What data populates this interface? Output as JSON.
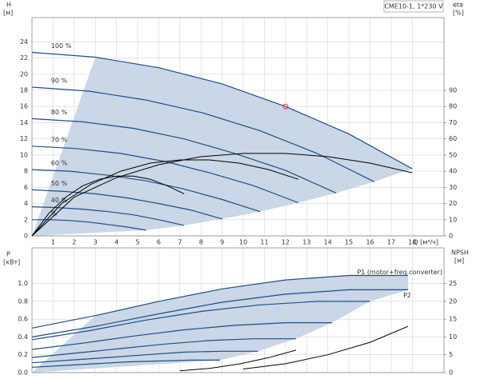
{
  "chart_data": [
    {
      "type": "line",
      "title": "CME10-1, 1*230 V",
      "y_label": "H",
      "y_unit": "[м]",
      "y2_label": "eta",
      "y2_unit": "[%]",
      "x_label": "Q [м³/ч]",
      "xlim": [
        0,
        19.5
      ],
      "xticks": [
        1,
        2,
        3,
        4,
        5,
        6,
        7,
        8,
        9,
        10,
        11,
        12,
        13,
        14,
        15,
        16,
        17,
        18
      ],
      "ylim": [
        0,
        27
      ],
      "yticks": [
        0,
        2,
        4,
        6,
        8,
        10,
        12,
        14,
        16,
        18,
        20,
        22,
        24
      ],
      "y2lim": [
        0,
        135
      ],
      "y2ticks": [
        0,
        10,
        20,
        30,
        40,
        50,
        60,
        70,
        80,
        90
      ],
      "grid": true,
      "area_color": "#c9d7e8",
      "series": [
        {
          "name": "100 %",
          "color": "#1f4e86",
          "x": [
            0,
            3,
            6,
            9,
            12,
            15,
            18
          ],
          "values": [
            22.7,
            22.1,
            20.8,
            18.8,
            16.0,
            12.6,
            8.3
          ]
        },
        {
          "name": "90 %",
          "color": "#1f4e86",
          "x": [
            0,
            2.7,
            5.4,
            8.1,
            10.8,
            13.5,
            16.2
          ],
          "values": [
            18.4,
            17.9,
            16.8,
            15.2,
            13.0,
            10.2,
            6.7
          ]
        },
        {
          "name": "80 %",
          "color": "#1f4e86",
          "x": [
            0,
            2.4,
            4.8,
            7.2,
            9.6,
            12,
            14.4
          ],
          "values": [
            14.5,
            14.1,
            13.3,
            12.0,
            10.2,
            8.1,
            5.3
          ]
        },
        {
          "name": "70 %",
          "color": "#1f4e86",
          "x": [
            0,
            2.1,
            4.2,
            6.3,
            8.4,
            10.5,
            12.6
          ],
          "values": [
            11.1,
            10.8,
            10.2,
            9.2,
            7.8,
            6.2,
            4.1
          ]
        },
        {
          "name": "60 %",
          "color": "#1f4e86",
          "x": [
            0,
            1.8,
            3.6,
            5.4,
            7.2,
            9,
            10.8
          ],
          "values": [
            8.2,
            8.0,
            7.5,
            6.8,
            5.8,
            4.5,
            3.0
          ]
        },
        {
          "name": "50 %",
          "color": "#1f4e86",
          "x": [
            0,
            1.5,
            3,
            4.5,
            6,
            7.5,
            9
          ],
          "values": [
            5.7,
            5.5,
            5.2,
            4.7,
            4.0,
            3.2,
            2.1
          ]
        },
        {
          "name": "40 %",
          "color": "#1f4e86",
          "x": [
            0,
            1.2,
            2.4,
            3.6,
            4.8,
            6,
            7.2
          ],
          "values": [
            3.6,
            3.5,
            3.3,
            3.0,
            2.6,
            2.0,
            1.3
          ]
        },
        {
          "name": "%",
          "color": "#1f4e86",
          "x": [
            0,
            0.9,
            1.8,
            2.7,
            3.6,
            4.5,
            5.4
          ],
          "values": [
            2.0,
            2.0,
            1.9,
            1.7,
            1.4,
            1.1,
            0.7
          ]
        },
        {
          "color": "#000000",
          "axis": "y2",
          "x": [
            0,
            2,
            4,
            6,
            8,
            10,
            12,
            14,
            16,
            18
          ],
          "values": [
            0,
            24,
            36,
            44,
            49,
            51,
            51,
            49,
            45,
            39
          ]
        },
        {
          "color": "#000000",
          "axis": "y2",
          "x": [
            0,
            1.4,
            2.8,
            4.2,
            5.6,
            7,
            8.4,
            9.8,
            11.2,
            12.6
          ],
          "values": [
            0,
            20,
            32,
            40,
            45,
            47,
            47,
            45,
            41,
            35
          ]
        },
        {
          "color": "#000000",
          "axis": "y2",
          "x": [
            0,
            0.8,
            1.6,
            2.4,
            3.2,
            4,
            4.8,
            5.6,
            6.4,
            7.2
          ],
          "values": [
            0,
            14,
            24,
            31,
            35,
            37,
            37,
            35,
            31,
            26
          ]
        }
      ],
      "marker": {
        "x": 12,
        "y": 16,
        "color": "#e8302a"
      }
    },
    {
      "type": "line",
      "y_label": "P",
      "y_unit": "[кВт]",
      "y2_label": "NPSH",
      "y2_unit": "[м]",
      "xlim": [
        0,
        19.5
      ],
      "ylim": [
        0,
        1.4
      ],
      "yticks": [
        {
          "value": 0,
          "label": "0.0"
        },
        0.2,
        0.4,
        0.6,
        0.8,
        {
          "value": 1,
          "label": "1.0"
        }
      ],
      "y2lim": [
        0,
        35
      ],
      "y2ticks": [
        0,
        5,
        10,
        15,
        20,
        25
      ],
      "grid": true,
      "area_color": "#c9d7e8",
      "series": [
        {
          "name": "P1 (motor+freq.converter)",
          "color": "#1f4e86",
          "x": [
            0,
            3,
            6,
            9,
            12,
            15,
            17.8
          ],
          "values": [
            0.5,
            0.64,
            0.8,
            0.94,
            1.04,
            1.09,
            1.09
          ]
        },
        {
          "name": "P2",
          "color": "#1f4e86",
          "x": [
            0,
            3,
            6,
            9,
            12,
            15,
            17.8
          ],
          "values": [
            0.4,
            0.52,
            0.66,
            0.79,
            0.88,
            0.93,
            0.93
          ]
        },
        {
          "color": "#1f4e86",
          "x": [
            0,
            2.7,
            5.4,
            8.1,
            10.8,
            13.5,
            16
          ],
          "values": [
            0.37,
            0.47,
            0.59,
            0.69,
            0.76,
            0.8,
            0.8
          ]
        },
        {
          "color": "#1f4e86",
          "x": [
            0,
            2.4,
            4.8,
            7.2,
            9.6,
            12,
            14.2
          ],
          "values": [
            0.26,
            0.33,
            0.41,
            0.48,
            0.53,
            0.56,
            0.56
          ]
        },
        {
          "color": "#1f4e86",
          "x": [
            0,
            2.1,
            4.2,
            6.3,
            8.4,
            10.5,
            12.5
          ],
          "values": [
            0.17,
            0.22,
            0.27,
            0.32,
            0.36,
            0.38,
            0.38
          ]
        },
        {
          "color": "#1f4e86",
          "x": [
            0,
            1.8,
            3.6,
            5.4,
            7.2,
            9,
            10.7
          ],
          "values": [
            0.11,
            0.14,
            0.17,
            0.2,
            0.23,
            0.24,
            0.24
          ]
        },
        {
          "color": "#1f4e86",
          "x": [
            0,
            1.5,
            3,
            4.5,
            6,
            7.5,
            8.9
          ],
          "values": [
            0.06,
            0.08,
            0.1,
            0.12,
            0.13,
            0.14,
            0.14
          ]
        },
        {
          "color": "#000000",
          "axis": "y2",
          "x": [
            10,
            12,
            14,
            16,
            17.8
          ],
          "values": [
            1,
            2.5,
            5,
            8.5,
            13
          ]
        },
        {
          "color": "#000000",
          "axis": "y2",
          "x": [
            7,
            8.4,
            9.8,
            11.2,
            12.5
          ],
          "values": [
            0.5,
            1.2,
            2.4,
            4.2,
            6.3
          ]
        }
      ]
    }
  ]
}
